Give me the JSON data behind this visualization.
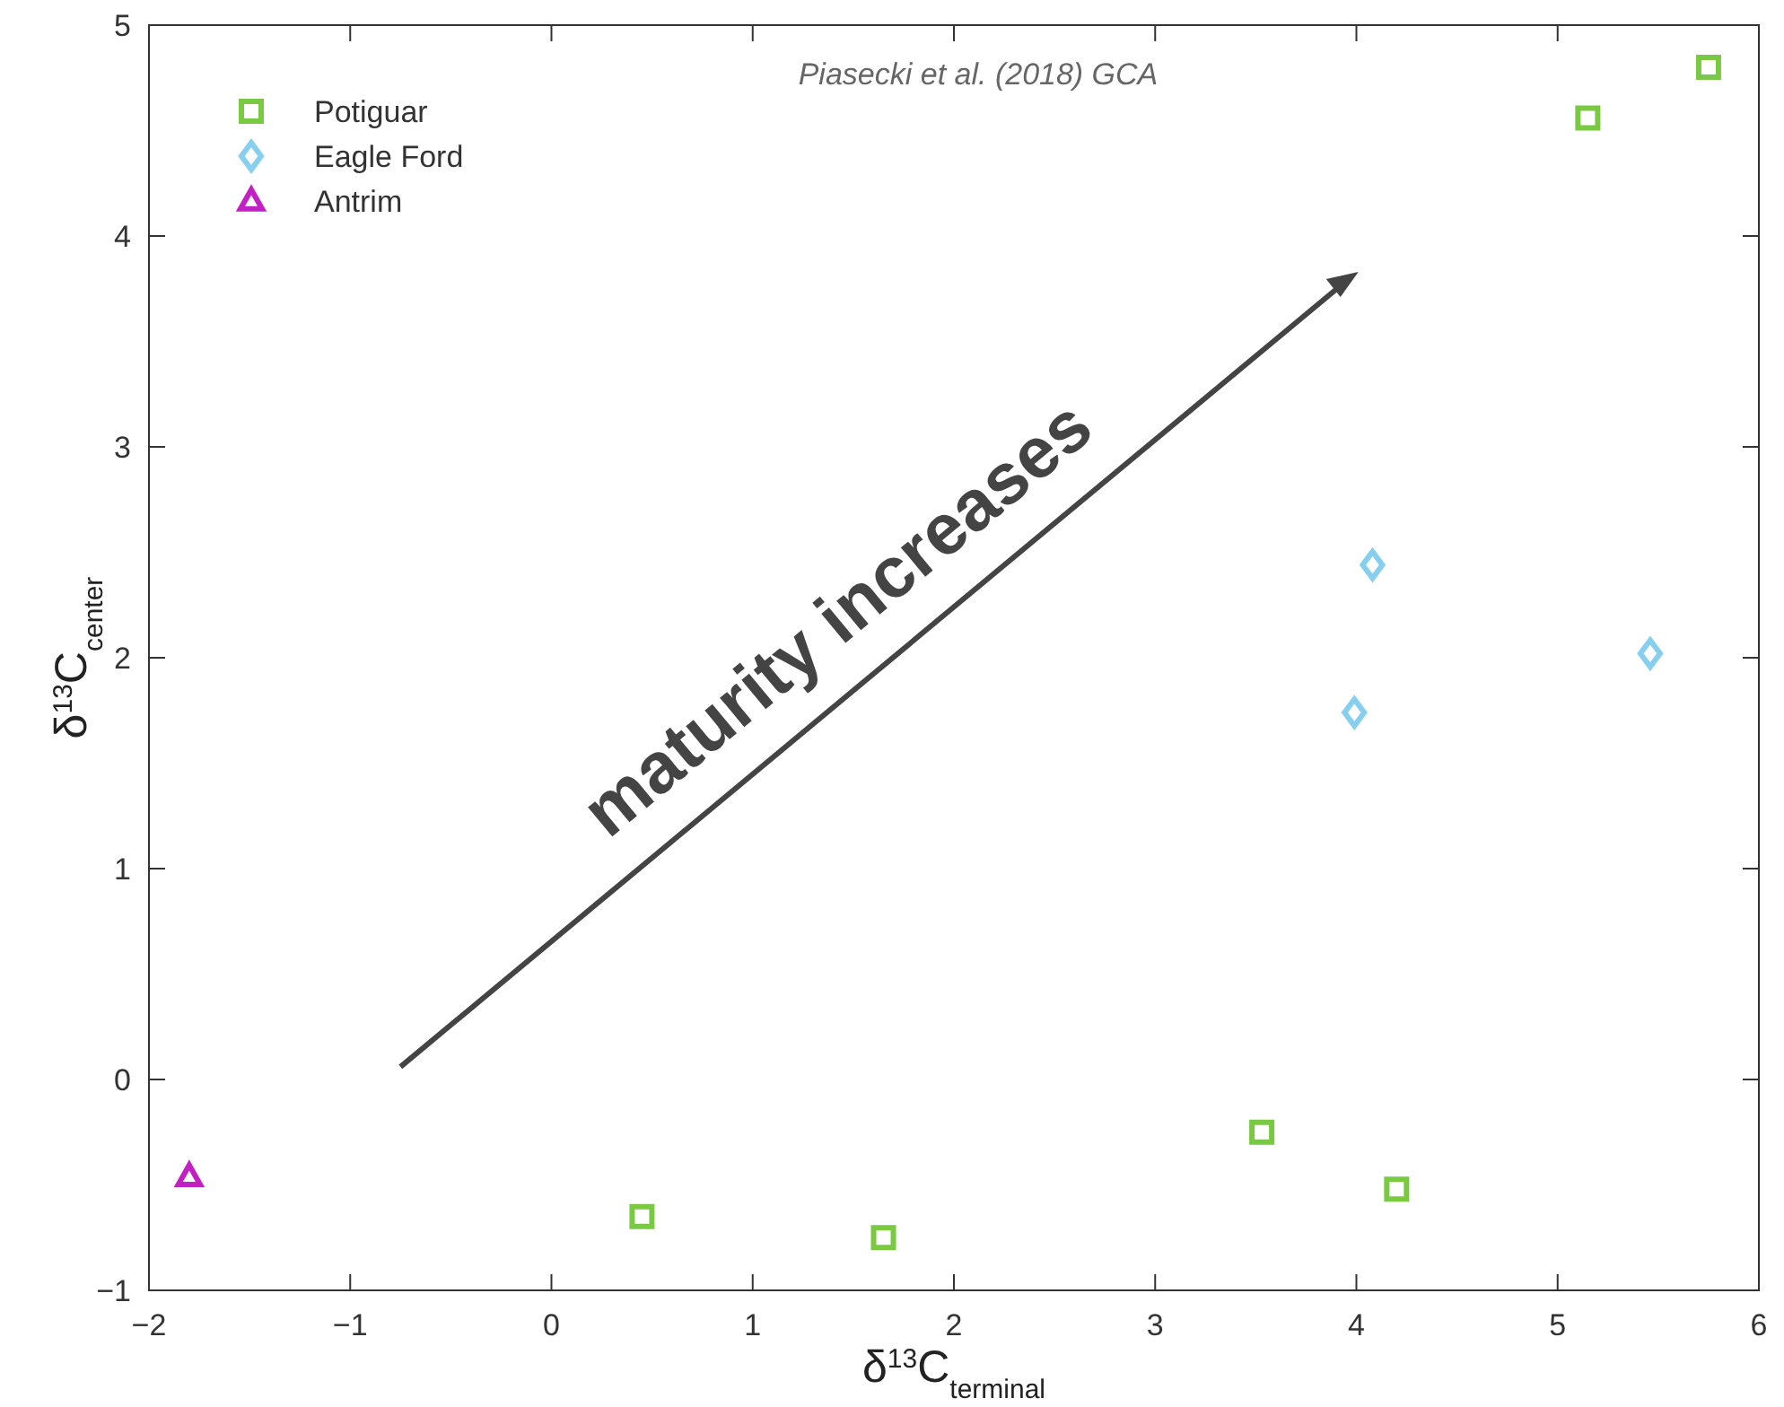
{
  "chart_data": {
    "type": "scatter",
    "xlabel": "δ$^{13}$C$_{terminal}$",
    "ylabel": "δ$^{13}$C$_{center}$",
    "xlim": [
      -2,
      6
    ],
    "xticks": [
      -2,
      -1,
      0,
      1,
      2,
      3,
      4,
      5,
      6
    ],
    "ylim": [
      -1,
      5
    ],
    "yticks": [
      -1,
      0,
      1,
      2,
      3,
      4,
      5
    ],
    "grid": false,
    "legend": "top left",
    "series": [
      {
        "name": "Potiguar",
        "color": "#7ac943",
        "marker": "square",
        "x": [
          5.75,
          5.15,
          0.45,
          1.65,
          3.53,
          4.2
        ],
        "values": [
          4.8,
          4.56,
          -0.65,
          -0.75,
          -0.25,
          -0.52
        ]
      },
      {
        "name": "Eagle Ford",
        "color": "#87cfee",
        "marker": "diamond",
        "x": [
          4.08,
          3.99,
          5.46
        ],
        "values": [
          2.44,
          1.74,
          2.02
        ]
      },
      {
        "name": "Antrim",
        "color": "#c21fc4",
        "marker": "triangle",
        "x": [
          -1.8
        ],
        "values": [
          -0.46
        ]
      }
    ],
    "annotations": [
      "Piasecki et al. (2018) GCA",
      "maturity increases"
    ]
  }
}
